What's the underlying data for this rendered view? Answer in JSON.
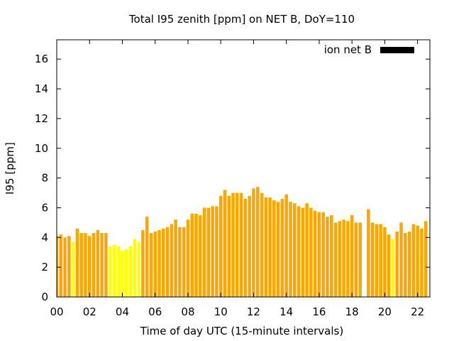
{
  "chart_data": {
    "type": "bar",
    "title": "Total I95 zenith [ppm] on NET B, DoY=110",
    "xlabel": "Time of day UTC (15-minute intervals)",
    "ylabel": "I95 [ppm]",
    "xlim": [
      0,
      22.75
    ],
    "ylim": [
      0,
      17.3
    ],
    "xticks": [
      "00",
      "02",
      "04",
      "06",
      "08",
      "10",
      "12",
      "14",
      "16",
      "18",
      "20",
      "22"
    ],
    "yticks": [
      "0",
      "2",
      "4",
      "6",
      "8",
      "10",
      "12",
      "14",
      "16"
    ],
    "grid": false,
    "legend": {
      "label": "ion net B",
      "color": "#000000",
      "position": "top-right"
    },
    "bar_interval_hours": 0.25,
    "colors": {
      "default": "#ffa500",
      "highlight": "#ffff00"
    },
    "series": [
      {
        "x": [
          0,
          0.25,
          0.5,
          0.75,
          1,
          1.25,
          1.5,
          1.75,
          2,
          2.25,
          2.5,
          2.75,
          3,
          3.25,
          3.5,
          3.75,
          4,
          4.25,
          4.5,
          4.75,
          5,
          5.25,
          5.5,
          5.75,
          6,
          6.25,
          6.5,
          6.75,
          7,
          7.25,
          7.5,
          7.75,
          8,
          8.25,
          8.5,
          8.75,
          9,
          9.25,
          9.5,
          9.75,
          10,
          10.25,
          10.5,
          10.75,
          11,
          11.25,
          11.5,
          11.75,
          12,
          12.25,
          12.5,
          12.75,
          13,
          13.25,
          13.5,
          13.75,
          14,
          14.25,
          14.5,
          14.75,
          15,
          15.25,
          15.5,
          15.75,
          16,
          16.25,
          16.5,
          16.75,
          17,
          17.25,
          17.5,
          17.75,
          18,
          18.25,
          18.5,
          19,
          19.25,
          19.5,
          19.75,
          20,
          20.25,
          20.5,
          20.75,
          21,
          21.25,
          21.5,
          21.75,
          22,
          22.25,
          22.5
        ],
        "values": [
          4.1,
          4.2,
          4.0,
          4.1,
          3.7,
          4.6,
          4.3,
          4.3,
          4.1,
          4.3,
          4.5,
          4.3,
          4.3,
          3.4,
          3.5,
          3.4,
          3.1,
          3.2,
          3.4,
          3.9,
          3.7,
          4.5,
          5.4,
          4.3,
          4.4,
          4.5,
          4.6,
          4.7,
          4.9,
          5.2,
          4.7,
          4.7,
          5.2,
          5.6,
          5.6,
          5.5,
          6.0,
          6.0,
          6.1,
          6.1,
          6.8,
          7.2,
          6.8,
          7.0,
          7.0,
          7.0,
          6.6,
          6.8,
          7.3,
          7.4,
          7.0,
          6.7,
          6.7,
          6.5,
          6.4,
          6.6,
          6.9,
          6.4,
          6.3,
          6.1,
          6.0,
          6.3,
          6.0,
          5.8,
          5.7,
          5.7,
          5.4,
          5.5,
          5.0,
          5.1,
          5.2,
          5.1,
          5.5,
          5.0,
          5.0,
          5.9,
          5.0,
          4.9,
          4.9,
          4.7,
          4.2,
          3.9,
          4.4,
          5.0,
          4.3,
          4.4,
          4.9,
          4.8,
          4.6,
          5.1
        ],
        "highlight_x": [
          1,
          3.25,
          3.5,
          3.75,
          4,
          4.25,
          4.5,
          4.75,
          5,
          20.5
        ]
      }
    ]
  }
}
